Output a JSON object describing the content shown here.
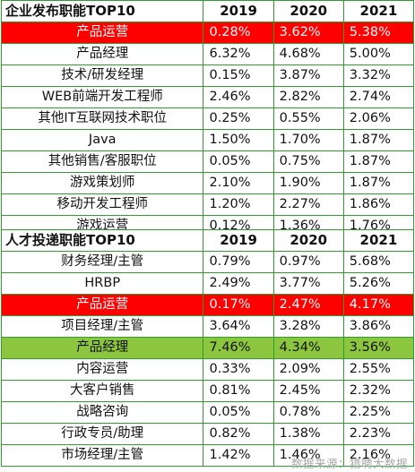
{
  "enterprise": {
    "title": "企业发布职能TOP10",
    "years": [
      "2019",
      "2020",
      "2021"
    ],
    "highlight_color": "#ff0000",
    "rows": [
      {
        "name": "产品运营",
        "values": [
          "0.28%",
          "3.62%",
          "5.38%"
        ],
        "highlight": "red"
      },
      {
        "name": "产品经理",
        "values": [
          "6.32%",
          "4.68%",
          "5.00%"
        ]
      },
      {
        "name": "技术/研发经理",
        "values": [
          "0.15%",
          "3.87%",
          "3.32%"
        ]
      },
      {
        "name": "WEB前端开发工程师",
        "values": [
          "2.46%",
          "2.82%",
          "2.74%"
        ]
      },
      {
        "name": "其他IT互联网技术职位",
        "values": [
          "0.25%",
          "0.55%",
          "2.06%"
        ]
      },
      {
        "name": "Java",
        "values": [
          "1.50%",
          "1.70%",
          "1.87%"
        ]
      },
      {
        "name": "其他销售/客服职位",
        "values": [
          "0.05%",
          "0.75%",
          "1.87%"
        ]
      },
      {
        "name": "游戏策划师",
        "values": [
          "2.10%",
          "1.90%",
          "1.87%"
        ]
      },
      {
        "name": "移动开发工程师",
        "values": [
          "1.20%",
          "2.27%",
          "1.86%"
        ]
      },
      {
        "name": "游戏运营",
        "values": [
          "0.12%",
          "1.36%",
          "1.76%"
        ]
      }
    ]
  },
  "talent": {
    "title": "人才投递职能TOP10",
    "years": [
      "2019",
      "2020",
      "2021"
    ],
    "rows": [
      {
        "name": "财务经理/主管",
        "values": [
          "0.79%",
          "0.97%",
          "5.68%"
        ]
      },
      {
        "name": "HRBP",
        "values": [
          "2.49%",
          "3.77%",
          "5.26%"
        ]
      },
      {
        "name": "产品运营",
        "values": [
          "0.17%",
          "2.47%",
          "4.17%"
        ],
        "highlight": "red"
      },
      {
        "name": "项目经理/主管",
        "values": [
          "3.64%",
          "3.28%",
          "3.86%"
        ]
      },
      {
        "name": "产品经理",
        "values": [
          "7.46%",
          "4.34%",
          "3.56%"
        ],
        "highlight": "green"
      },
      {
        "name": "内容运营",
        "values": [
          "0.33%",
          "2.09%",
          "2.55%"
        ]
      },
      {
        "name": "大客户销售",
        "values": [
          "0.81%",
          "2.45%",
          "2.32%"
        ]
      },
      {
        "name": "战略咨询",
        "values": [
          "0.05%",
          "0.78%",
          "2.25%"
        ]
      },
      {
        "name": "行政专员/助理",
        "values": [
          "0.82%",
          "1.38%",
          "2.23%"
        ]
      },
      {
        "name": "市场经理/主管",
        "values": [
          "1.42%",
          "1.46%",
          "2.16%"
        ]
      }
    ]
  },
  "colors": {
    "border": "#2e9e2e",
    "highlight_red": "#ff0000",
    "highlight_green": "#8cc63f",
    "source_text": "#a8a8a8"
  },
  "source": "数据来源：猎聘大数据"
}
